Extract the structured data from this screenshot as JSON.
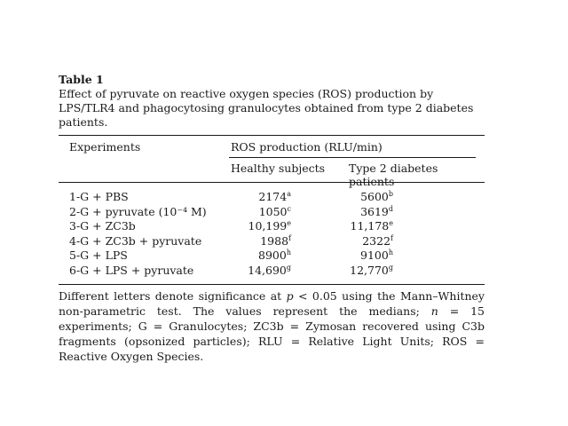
{
  "table": {
    "label": "Table 1",
    "caption": "Effect of pyruvate on reactive oxygen species (ROS) production by LPS/TLR4 and phagocytosing granulocytes obtained from type 2 diabetes patients.",
    "header": {
      "experiments": "Experiments",
      "ros_production": "ROS production (RLU/min)",
      "col_healthy": "Healthy subjects",
      "col_diabetes": "Type 2 diabetes patients"
    },
    "rows": [
      {
        "experiment": "1-G + PBS",
        "healthy": "2174",
        "healthy_sup": "a",
        "diabetes": "5600",
        "diabetes_sup": "b"
      },
      {
        "experiment": "2-G + pyruvate (10⁻⁴ M)",
        "healthy": "1050",
        "healthy_sup": "c",
        "diabetes": "3619",
        "diabetes_sup": "d"
      },
      {
        "experiment": "3-G + ZC3b",
        "healthy": "10,199",
        "healthy_sup": "e",
        "diabetes": "11,178",
        "diabetes_sup": "e"
      },
      {
        "experiment": "4-G + ZC3b + pyruvate",
        "healthy": "1988",
        "healthy_sup": "f",
        "diabetes": "2322",
        "diabetes_sup": "f"
      },
      {
        "experiment": "5-G + LPS",
        "healthy": "8900",
        "healthy_sup": "h",
        "diabetes": "9100",
        "diabetes_sup": "h"
      },
      {
        "experiment": "6-G + LPS + pyruvate",
        "healthy": "14,690",
        "healthy_sup": "g",
        "diabetes": "12,770",
        "diabetes_sup": "g"
      }
    ],
    "footnote": {
      "part1": "Different letters denote significance at ",
      "p_symbol": "p",
      "part2": " < 0.05 using the Mann–Whitney non-parametric test. The values represent the medians; ",
      "n_symbol": "n",
      "part3": " = 15 experiments; G = Granulocytes; ZC3b = Zymosan recovered using C3b fragments (opsonized particles); RLU = Relative Light Units; ROS = Reactive Oxygen Species."
    }
  }
}
